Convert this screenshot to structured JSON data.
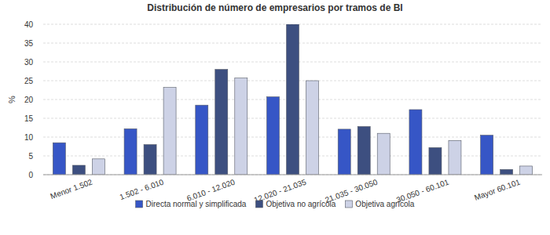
{
  "chart_data": {
    "type": "bar",
    "title": "Distribución de número de empresarios por tramos de BI",
    "y_label": "%",
    "categories": [
      "Menor 1.502",
      "1.502 - 6.010",
      "6.010 - 12.020",
      "12.020 - 21.035",
      "21.035 - 30.050",
      "30.050 - 60.101",
      "Mayor 60.101"
    ],
    "series": [
      {
        "name": "Directa normal y simplificada",
        "color": "#3656c6",
        "values": [
          8.5,
          12.2,
          18.5,
          20.7,
          12.1,
          17.3,
          10.5
        ]
      },
      {
        "name": "Objetiva no agrícola",
        "color": "#3d4f80",
        "values": [
          2.5,
          8.0,
          28.0,
          40.0,
          12.8,
          7.2,
          1.4
        ]
      },
      {
        "name": "Objetiva agrícola",
        "color": "#cdd2e6",
        "values": [
          4.2,
          23.2,
          25.7,
          25.0,
          11.0,
          9.1,
          2.3
        ]
      }
    ],
    "ylim": [
      0,
      40
    ],
    "yticks": [
      0,
      5,
      10,
      15,
      20,
      25,
      30,
      35,
      40
    ],
    "grid": true,
    "legend": "bottom"
  }
}
